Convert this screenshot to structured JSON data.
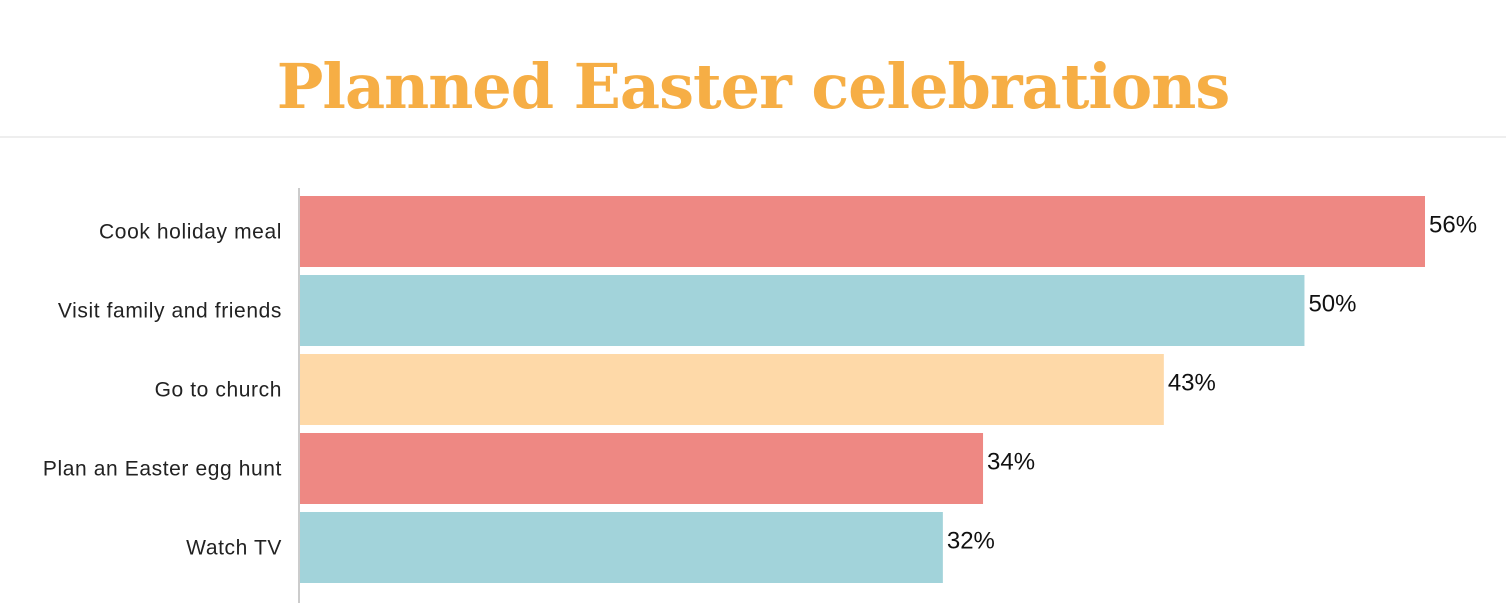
{
  "chart_data": {
    "type": "bar",
    "orientation": "horizontal",
    "title": "Planned Easter celebrations",
    "categories": [
      "Cook holiday meal",
      "Visit family and friends",
      "Go to church",
      "Plan an Easter egg hunt",
      "Watch TV"
    ],
    "values": [
      56,
      50,
      43,
      34,
      32
    ],
    "value_labels": [
      "56%",
      "50%",
      "43%",
      "34%",
      "32%"
    ],
    "unit": "%",
    "xlim": [
      0,
      56
    ],
    "grid": false,
    "colors": [
      "#ee8883",
      "#a2d3da",
      "#fed9a8",
      "#ee8883",
      "#a2d3da"
    ]
  },
  "theme": {
    "title_color": "#f6ae45",
    "axis_color": "#cccccc"
  }
}
